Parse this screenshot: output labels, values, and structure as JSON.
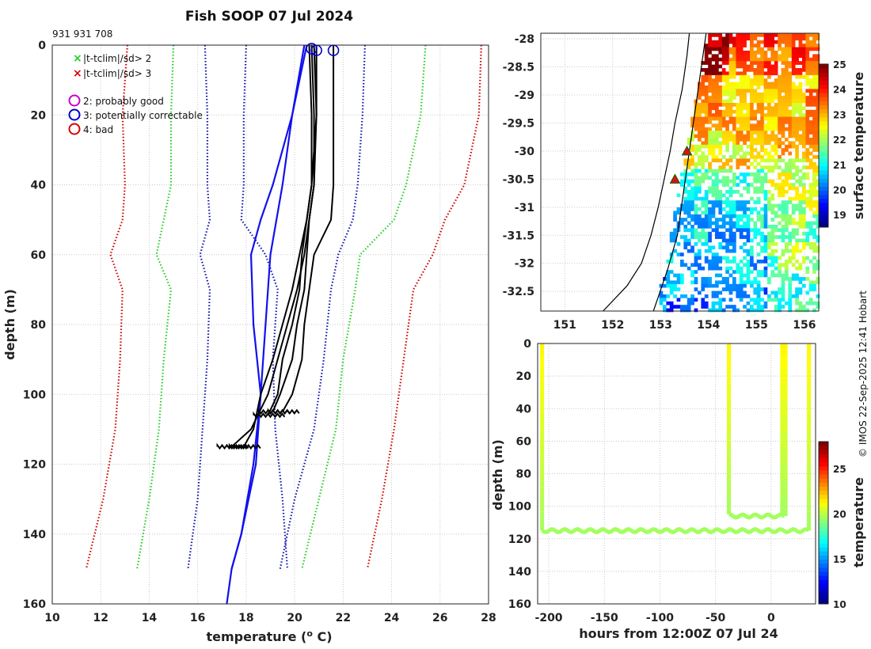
{
  "header": {
    "title": "Fish SOOP 07 Jul 2024",
    "ship_id": "931 931 708",
    "credit": "© IMOS 22-Sep-2025 12:41 Hobart"
  },
  "chart_data": [
    {
      "id": "profile",
      "type": "line",
      "title": "Fish SOOP 07 Jul 2024",
      "xlabel": "temperature (",
      "xlabel_sup": "o",
      "xlabel_end": " C)",
      "ylabel": "depth (m)",
      "xlim": [
        10,
        28
      ],
      "ylim": [
        160,
        0
      ],
      "xticks": [
        "10",
        "12",
        "14",
        "16",
        "18",
        "20",
        "22",
        "24",
        "26",
        "28"
      ],
      "yticks": [
        "0",
        "20",
        "40",
        "60",
        "80",
        "100",
        "120",
        "140",
        "160"
      ],
      "legend": {
        "flags": [
          {
            "label": "|t-tclim|/sd> 2",
            "marker": "x",
            "color": "#22cc22"
          },
          {
            "label": "|t-tclim|/sd> 3",
            "marker": "x",
            "color": "#dd0000"
          }
        ],
        "qc": [
          {
            "label": "2: probably good",
            "color": "#cc00cc"
          },
          {
            "label": "3: potentially correctable",
            "color": "#0000cc"
          },
          {
            "label": "4: bad",
            "color": "#dd0000"
          }
        ]
      },
      "climatology": [
        {
          "name": "clim -3sd",
          "color": "#cc0000",
          "depth": [
            0,
            20,
            40,
            50,
            60,
            70,
            90,
            110,
            130,
            150
          ],
          "temp": [
            13.1,
            12.9,
            13.0,
            12.9,
            12.4,
            12.9,
            12.8,
            12.6,
            12.1,
            11.4
          ]
        },
        {
          "name": "clim -2sd",
          "color": "#22cc22",
          "depth": [
            0,
            20,
            40,
            50,
            60,
            70,
            90,
            110,
            130,
            150
          ],
          "temp": [
            15.0,
            14.9,
            14.9,
            14.6,
            14.3,
            14.9,
            14.6,
            14.4,
            14.0,
            13.5
          ]
        },
        {
          "name": "clim -1sd",
          "color": "#1111aa",
          "depth": [
            0,
            20,
            40,
            50,
            60,
            70,
            90,
            110,
            130,
            150
          ],
          "temp": [
            16.3,
            16.4,
            16.4,
            16.5,
            16.1,
            16.5,
            16.4,
            16.2,
            16.0,
            15.6
          ]
        },
        {
          "name": "clim -1sd b",
          "color": "#1111aa",
          "depth": [
            0,
            20,
            40,
            50,
            60,
            70,
            90,
            110,
            130,
            150
          ],
          "temp": [
            18.0,
            17.9,
            17.9,
            17.8,
            18.8,
            19.3,
            19.1,
            19.2,
            19.5,
            19.7
          ]
        },
        {
          "name": "clim +1sd",
          "color": "#1111aa",
          "depth": [
            0,
            20,
            40,
            50,
            60,
            70,
            90,
            110,
            130,
            150
          ],
          "temp": [
            22.9,
            22.8,
            22.6,
            22.4,
            21.8,
            21.5,
            21.2,
            20.8,
            20.0,
            19.4
          ]
        },
        {
          "name": "clim +2sd",
          "color": "#22cc22",
          "depth": [
            0,
            20,
            40,
            50,
            60,
            70,
            90,
            110,
            130,
            150
          ],
          "temp": [
            25.4,
            25.2,
            24.6,
            24.1,
            22.7,
            22.5,
            22.0,
            21.7,
            21.0,
            20.3
          ]
        },
        {
          "name": "clim +3sd",
          "color": "#cc0000",
          "depth": [
            0,
            20,
            40,
            50,
            60,
            70,
            90,
            110,
            130,
            150
          ],
          "temp": [
            27.7,
            27.6,
            27.0,
            26.2,
            25.7,
            24.9,
            24.5,
            24.1,
            23.6,
            23.0
          ]
        }
      ],
      "clim_mean": {
        "color": "#1111ee",
        "depth": [
          0,
          20,
          40,
          60,
          80,
          100,
          120,
          140,
          150,
          160
        ],
        "temp": [
          20.4,
          19.9,
          19.5,
          19.0,
          18.8,
          18.6,
          18.4,
          17.8,
          17.4,
          17.2
        ]
      },
      "profiles": [
        {
          "depth": [
            0,
            20,
            40,
            50,
            60,
            70,
            80,
            90,
            100,
            105
          ],
          "temp": [
            21.6,
            21.6,
            21.6,
            21.5,
            20.8,
            20.6,
            20.4,
            20.3,
            19.9,
            19.5
          ]
        },
        {
          "depth": [
            0,
            20,
            40,
            50,
            60,
            70,
            80,
            90,
            100,
            105
          ],
          "temp": [
            20.9,
            20.9,
            20.8,
            20.6,
            20.5,
            20.4,
            20.1,
            19.9,
            19.4,
            19.1
          ]
        },
        {
          "depth": [
            0,
            20,
            40,
            50,
            60,
            70,
            80,
            90,
            100,
            106
          ],
          "temp": [
            20.8,
            20.9,
            20.7,
            20.5,
            20.3,
            20.2,
            19.9,
            19.5,
            19.3,
            18.9
          ]
        },
        {
          "depth": [
            0,
            20,
            40,
            50,
            60,
            70,
            80,
            90,
            100,
            110,
            115
          ],
          "temp": [
            20.7,
            20.8,
            20.8,
            20.6,
            20.4,
            20.1,
            19.7,
            19.3,
            18.9,
            18.2,
            17.4
          ]
        },
        {
          "depth": [
            0,
            20,
            40,
            50,
            60,
            70,
            80,
            90,
            100,
            110,
            115
          ],
          "temp": [
            20.6,
            20.7,
            20.7,
            20.5,
            20.2,
            19.9,
            19.5,
            19.1,
            18.6,
            18.3,
            17.9
          ]
        }
      ],
      "blue_profile": {
        "depth": [
          0,
          20,
          40,
          50,
          60,
          80,
          100,
          120,
          140,
          150
        ],
        "temp": [
          20.5,
          19.9,
          19.1,
          18.6,
          18.2,
          18.3,
          18.6,
          18.3,
          17.8,
          17.4
        ]
      },
      "qc_markers": [
        {
          "temp": 20.7,
          "depth": 1,
          "flag": "3"
        },
        {
          "temp": 20.9,
          "depth": 1.5,
          "flag": "3"
        },
        {
          "temp": 21.6,
          "depth": 1.5,
          "flag": "3"
        }
      ]
    },
    {
      "id": "map",
      "type": "heatmap",
      "xlabel": "",
      "ylabel": "",
      "xlim": [
        150.5,
        156.3
      ],
      "ylim": [
        -32.85,
        -27.9
      ],
      "xticks": [
        "151",
        "152",
        "153",
        "154",
        "155",
        "156"
      ],
      "yticks": [
        "-28",
        "-28.5",
        "-29",
        "-29.5",
        "-30",
        "-30.5",
        "-31",
        "-31.5",
        "-32",
        "-32.5"
      ],
      "colorbar": {
        "label": "surface temperature",
        "range": [
          18.5,
          25
        ],
        "ticks": [
          "19",
          "20",
          "21",
          "22",
          "23",
          "24",
          "25"
        ]
      },
      "stations": [
        {
          "lon": 153.55,
          "lat": -30.0
        },
        {
          "lon": 153.3,
          "lat": -30.5
        }
      ]
    },
    {
      "id": "timeseries",
      "type": "heatmap",
      "xlabel": "hours from 12:00Z 07 Jul 24",
      "ylabel": "depth (m)",
      "xlim": [
        -210,
        40
      ],
      "ylim": [
        160,
        0
      ],
      "xticks": [
        "-200",
        "-150",
        "-100",
        "-50",
        "0"
      ],
      "yticks": [
        "0",
        "20",
        "40",
        "60",
        "80",
        "100",
        "120",
        "140",
        "160"
      ],
      "colorbar": {
        "label": "temperature",
        "range": [
          10,
          28
        ],
        "ticks": [
          "10",
          "15",
          "20",
          "25"
        ]
      },
      "casts": [
        {
          "hour": -206,
          "max_depth": 115
        },
        {
          "hour": -38,
          "max_depth": 105
        },
        {
          "hour": 10,
          "max_depth": 105
        },
        {
          "hour": 13,
          "max_depth": 106
        },
        {
          "hour": 34,
          "max_depth": 115
        }
      ]
    }
  ]
}
